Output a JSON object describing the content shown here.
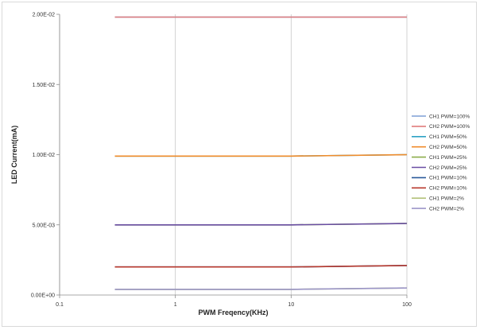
{
  "chart_data": {
    "type": "line",
    "title": "",
    "xlabel": "PWM Freqency(KHz)",
    "ylabel": "LED Current(mA)",
    "xscale": "log",
    "xlim": [
      0.1,
      100
    ],
    "ylim": [
      0,
      0.02
    ],
    "xticks": [
      0.1,
      1,
      10,
      100
    ],
    "xtick_labels": [
      "0.1",
      "1",
      "10",
      "100"
    ],
    "yticks": [
      0,
      0.005,
      0.01,
      0.015,
      0.02
    ],
    "ytick_labels": [
      "0.00E+00",
      "5.00E-03",
      "1.00E-02",
      "1.50E-02",
      "2.00E-02"
    ],
    "grid": "vertical",
    "legend_position": "right",
    "x": [
      0.3,
      1,
      10,
      100
    ],
    "series": [
      {
        "name": "CH1 PWM=100%",
        "color": "#7f9fd5",
        "values": [
          0.0198,
          0.0198,
          0.0198,
          0.0198
        ]
      },
      {
        "name": "CH2 PWM=100%",
        "color": "#e07c7c",
        "values": [
          0.0198,
          0.0198,
          0.0198,
          0.0198
        ]
      },
      {
        "name": "CH1 PWM=50%",
        "color": "#2fa2c4",
        "values": [
          0.0099,
          0.0099,
          0.0099,
          0.01
        ]
      },
      {
        "name": "CH2 PWM=50%",
        "color": "#f08c2c",
        "values": [
          0.0099,
          0.0099,
          0.0099,
          0.01
        ]
      },
      {
        "name": "CH1 PWM=25%",
        "color": "#8cae4a",
        "values": [
          0.005,
          0.005,
          0.005,
          0.0051
        ]
      },
      {
        "name": "CH2 PWM=25%",
        "color": "#6a4ea3",
        "values": [
          0.005,
          0.005,
          0.005,
          0.0051
        ]
      },
      {
        "name": "CH1 PWM=10%",
        "color": "#2a5a9a",
        "values": [
          0.002,
          0.002,
          0.002,
          0.0021
        ]
      },
      {
        "name": "CH2 PWM=10%",
        "color": "#b83a2e",
        "values": [
          0.002,
          0.002,
          0.002,
          0.0021
        ]
      },
      {
        "name": "CH1 PWM=2%",
        "color": "#b3c27a",
        "values": [
          0.0004,
          0.0004,
          0.0004,
          0.0005
        ]
      },
      {
        "name": "CH2 PWM=2%",
        "color": "#9b95c8",
        "values": [
          0.0004,
          0.0004,
          0.0004,
          0.0005
        ]
      }
    ]
  }
}
